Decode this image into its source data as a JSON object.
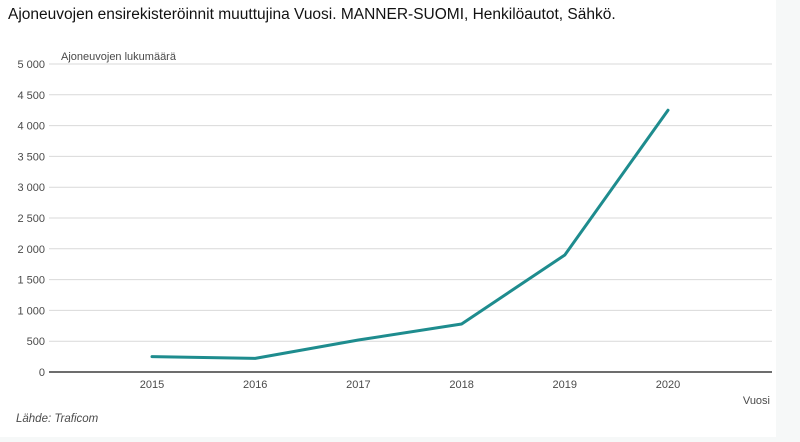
{
  "title": "Ajoneuvojen ensirekisteröinnit muuttujina Vuosi. MANNER-SUOMI, Henkilöautot, Sähkö.",
  "source": "Lähde: Traficom",
  "chart_data": {
    "type": "line",
    "title": "Ajoneuvojen ensirekisteröinnit muuttujina Vuosi. MANNER-SUOMI, Henkilöautot, Sähkö.",
    "categories": [
      "2015",
      "2016",
      "2017",
      "2018",
      "2019",
      "2020"
    ],
    "series": [
      {
        "name": "Sähkö",
        "values": [
          250,
          220,
          520,
          780,
          1900,
          4250
        ]
      }
    ],
    "xlabel": "Vuosi",
    "ylabel": "Ajoneuvojen lukumäärä",
    "ylim": [
      0,
      5000
    ],
    "ytick_step": 500,
    "grid": "horizontal",
    "legend": "none",
    "colors": {
      "line": "#1e8c8e",
      "gridline": "#d9d9d9",
      "axis_line": "#3d3d3d",
      "tick_text": "#4a4a4a",
      "title_text": "#121212"
    }
  }
}
